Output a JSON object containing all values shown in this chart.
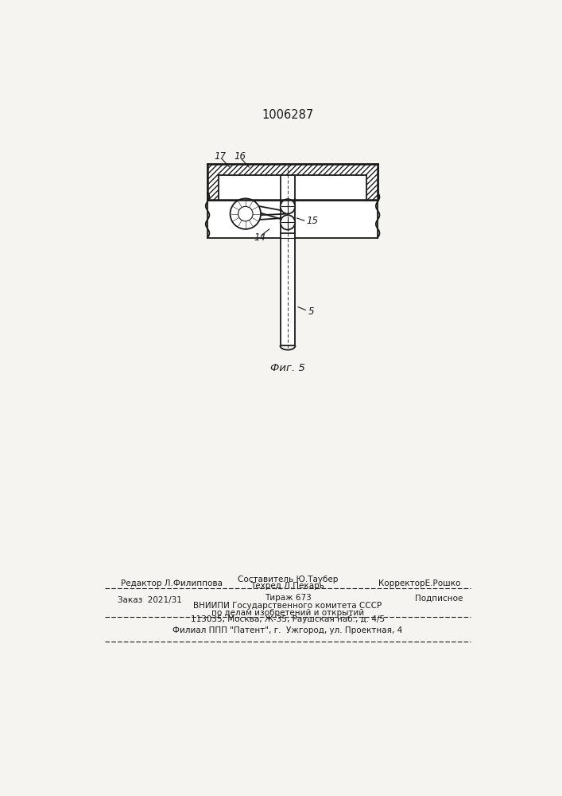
{
  "patent_number": "1006287",
  "fig_label": "Фиг. 5",
  "bg_color": "#f5f4f1",
  "line_color": "#1a1a1a",
  "editor_line": "Редактор Л.Филиппова",
  "composer_line": "Составитель Ю.Таубер",
  "techred_line": "Техред Л.Пекарь",
  "corrector_line": "КорректорЕ.Рошко",
  "order_text": "Заказ  2021/31",
  "tirage_text": "Тираж 673",
  "podpisnoe_text": "Подписное",
  "vniipи_line1": "ВНИИПИ Государственного комитета СССР",
  "vniipи_line2": "по делам изобретений и открытий",
  "vniipи_line3": "113035, Москва, Ж-35, Раушская наб., д. 4/5",
  "filial_line": "Филиал ППП \"Патент\", г.  Ужгород, ул. Проектная, 4",
  "label_5": "5",
  "label_14": "14",
  "label_15": "15",
  "label_16": "16",
  "label_17": "17"
}
